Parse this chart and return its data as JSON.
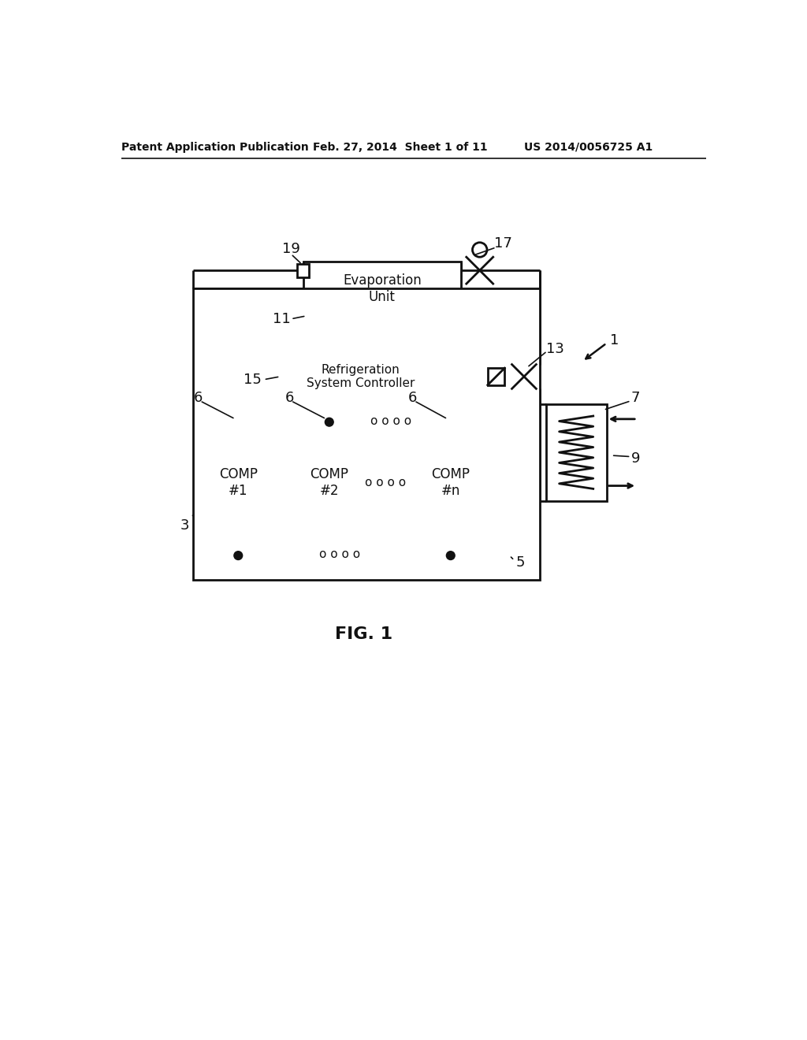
{
  "bg_color": "#ffffff",
  "line_color": "#111111",
  "header_left": "Patent Application Publication",
  "header_mid": "Feb. 27, 2014  Sheet 1 of 11",
  "header_right": "US 2014/0056725 A1",
  "fig_label": "FIG. 1",
  "comp1_label": "COMP\n#1",
  "comp2_label": "COMP\n#2",
  "compn_label": "COMP\n#n",
  "evap_label": "Evaporation\nUnit",
  "controller_label": "Refrigeration\nSystem Controller",
  "dots_top": "o o o o",
  "dots_bot": "o o o o",
  "dots_mid": "o o o o"
}
